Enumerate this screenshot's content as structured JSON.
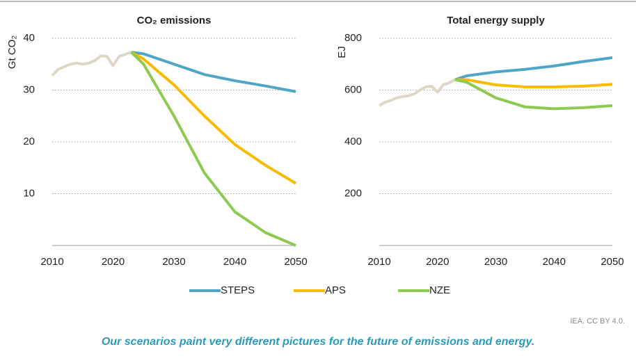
{
  "chart_data": [
    {
      "type": "line",
      "title": "CO₂ emissions",
      "ylabel": "Gt CO₂",
      "x": [
        2010,
        2011,
        2012,
        2013,
        2014,
        2015,
        2016,
        2017,
        2018,
        2019,
        2020,
        2021,
        2022,
        2023,
        2025,
        2030,
        2035,
        2040,
        2045,
        2050
      ],
      "series": [
        {
          "color": "#ddd8c6",
          "values": [
            32.8,
            34,
            34.5,
            35,
            35.2,
            35,
            35.2,
            35.7,
            36.6,
            36.5,
            34.7,
            36.5,
            36.9,
            37.3,
            null,
            null,
            null,
            null,
            null,
            null
          ]
        },
        {
          "name": "STEPS",
          "color": "#4ea6c7",
          "values": [
            null,
            null,
            null,
            null,
            null,
            null,
            null,
            null,
            null,
            null,
            null,
            null,
            null,
            37.3,
            37,
            35,
            33,
            31.8,
            30.8,
            29.7
          ]
        },
        {
          "name": "APS",
          "color": "#f8bb00",
          "values": [
            null,
            null,
            null,
            null,
            null,
            null,
            null,
            null,
            null,
            null,
            null,
            null,
            null,
            37.3,
            36,
            31,
            25,
            19.5,
            15.5,
            12
          ]
        },
        {
          "name": "NZE",
          "color": "#8ccb4f",
          "values": [
            null,
            null,
            null,
            null,
            null,
            null,
            null,
            null,
            null,
            null,
            null,
            null,
            null,
            37.3,
            35,
            25,
            14,
            6.5,
            2.5,
            0
          ]
        }
      ],
      "xlim": [
        2010,
        2050
      ],
      "xticks": [
        2010,
        2020,
        2030,
        2040,
        2050
      ],
      "ylim": [
        0,
        40
      ],
      "yticks": [
        10,
        20,
        30,
        40
      ],
      "grid": true
    },
    {
      "type": "line",
      "title": "Total energy supply",
      "ylabel": "EJ",
      "x": [
        2010,
        2011,
        2012,
        2013,
        2014,
        2015,
        2016,
        2017,
        2018,
        2019,
        2020,
        2021,
        2022,
        2023,
        2025,
        2030,
        2035,
        2040,
        2045,
        2050
      ],
      "series": [
        {
          "color": "#ddd8c6",
          "values": [
            540,
            553,
            560,
            570,
            575,
            578,
            585,
            600,
            612,
            615,
            592,
            620,
            628,
            640,
            null,
            null,
            null,
            null,
            null,
            null
          ]
        },
        {
          "name": "STEPS",
          "color": "#4ea6c7",
          "values": [
            null,
            null,
            null,
            null,
            null,
            null,
            null,
            null,
            null,
            null,
            null,
            null,
            null,
            640,
            655,
            670,
            680,
            693,
            710,
            725
          ]
        },
        {
          "name": "APS",
          "color": "#f8bb00",
          "values": [
            null,
            null,
            null,
            null,
            null,
            null,
            null,
            null,
            null,
            null,
            null,
            null,
            null,
            640,
            640,
            620,
            612,
            612,
            615,
            622
          ]
        },
        {
          "name": "NZE",
          "color": "#8ccb4f",
          "values": [
            null,
            null,
            null,
            null,
            null,
            null,
            null,
            null,
            null,
            null,
            null,
            null,
            null,
            640,
            630,
            570,
            535,
            528,
            532,
            540
          ]
        }
      ],
      "xlim": [
        2010,
        2050
      ],
      "xticks": [
        2010,
        2020,
        2030,
        2040,
        2050
      ],
      "ylim": [
        0,
        800
      ],
      "yticks": [
        200,
        400,
        600,
        800
      ],
      "grid": true
    }
  ],
  "source": "IEA. CC BY 4.0.",
  "caption": "Our scenarios paint very different pictures for the future of emissions and energy."
}
